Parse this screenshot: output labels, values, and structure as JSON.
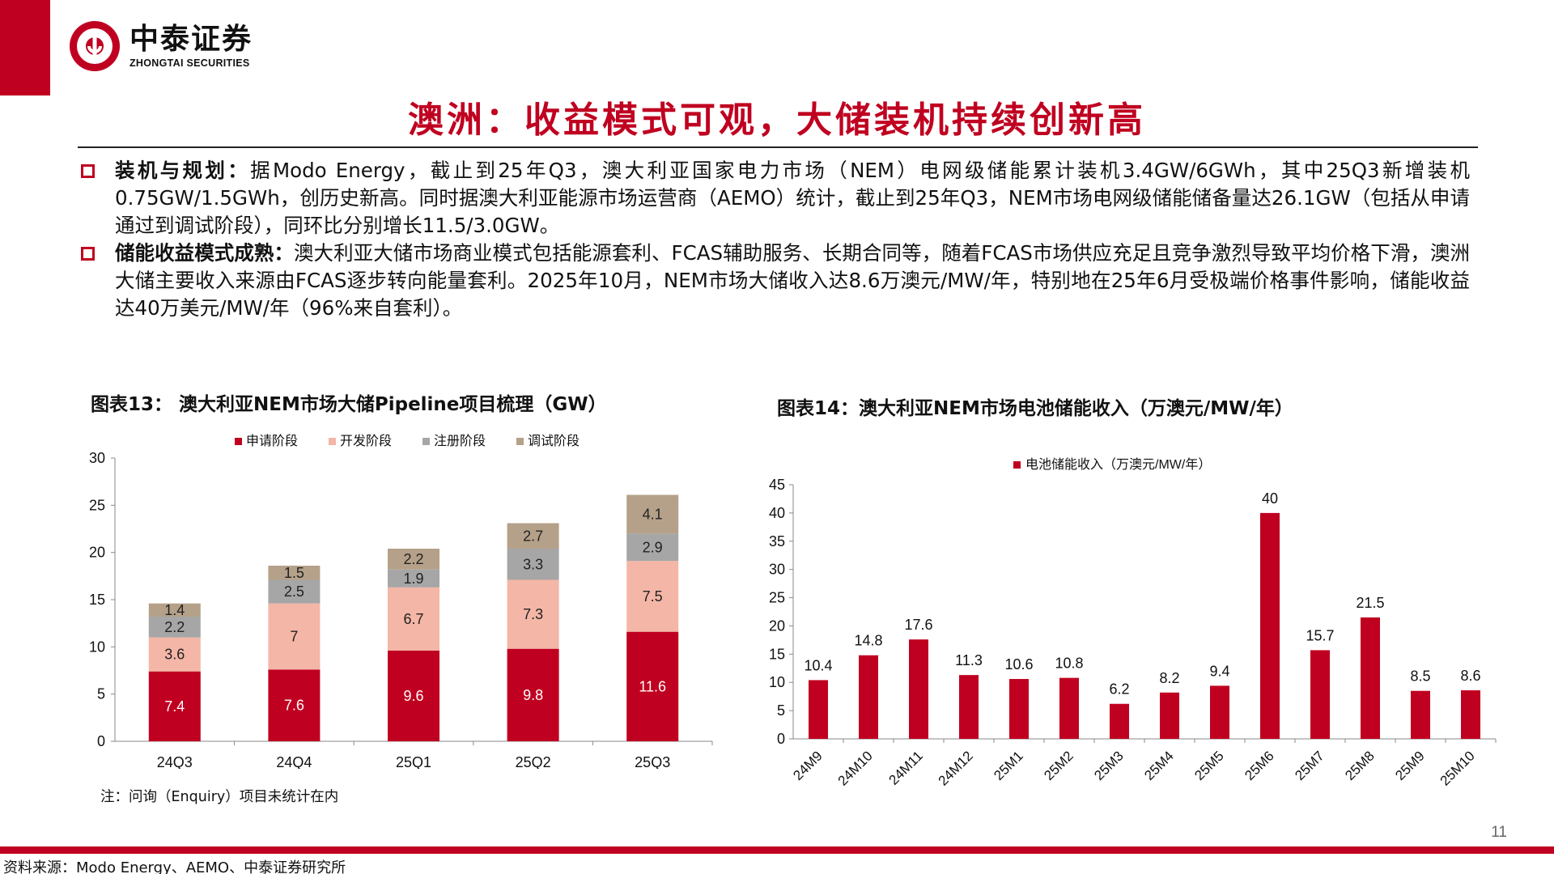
{
  "brand": {
    "name_cn": "中泰证券",
    "name_en": "ZHONGTAI SECURITIES",
    "color_primary": "#c00020"
  },
  "page": {
    "title": "澳洲：收益模式可观，大储装机持续创新高",
    "number": "11"
  },
  "bullets": [
    {
      "head": "装机与规划：",
      "text": "据Modo Energy，截止到25年Q3，澳大利亚国家电力市场（NEM）电网级储能累计装机3.4GW/6GWh，其中25Q3新增装机0.75GW/1.5GWh，创历史新高。同时据澳大利亚能源市场运营商（AEMO）统计，截止到25年Q3，NEM市场电网级储能储备量达26.1GW（包括从申请通过到调试阶段），同环比分别增长11.5/3.0GW。"
    },
    {
      "head": "储能收益模式成熟：",
      "text": "澳大利亚大储市场商业模式包括能源套利、FCAS辅助服务、长期合同等，随着FCAS市场供应充足且竞争激烈导致平均价格下滑，澳洲大储主要收入来源由FCAS逐步转向能量套利。2025年10月，NEM市场大储收入达8.6万澳元/MW/年，特别地在25年6月受极端价格事件影响，储能收益达40万美元/MW/年（96%来自套利）。"
    }
  ],
  "chart13_title": "图表13： 澳大利亚NEM市场大储Pipeline项目梳理（GW）",
  "chart14_title": "图表14：澳大利亚NEM市场电池储能收入（万澳元/MW/年）",
  "note": "注：问询（Enquiry）项目未统计在内",
  "source": "资料来源：Modo Energy、AEMO、中泰证券研究所",
  "chart_data": [
    {
      "type": "bar",
      "stacked": true,
      "title": "澳大利亚NEM市场大储Pipeline项目梳理（GW）",
      "categories": [
        "24Q3",
        "24Q4",
        "25Q1",
        "25Q2",
        "25Q3"
      ],
      "series": [
        {
          "name": "申请阶段",
          "color": "#c00020",
          "values": [
            7.4,
            7.6,
            9.6,
            9.8,
            11.6
          ]
        },
        {
          "name": "开发阶段",
          "color": "#f4b6a6",
          "values": [
            3.6,
            7,
            6.7,
            7.3,
            7.5
          ]
        },
        {
          "name": "注册阶段",
          "color": "#a6a6a6",
          "values": [
            2.2,
            2.5,
            1.9,
            3.3,
            2.9
          ]
        },
        {
          "name": "调试阶段",
          "color": "#b5a189",
          "values": [
            1.4,
            1.5,
            2.2,
            2.7,
            4.1
          ]
        }
      ],
      "yticks": [
        "0",
        "5",
        "10",
        "15",
        "20",
        "25",
        "30"
      ],
      "ylim": [
        0,
        30
      ],
      "legend": "top"
    },
    {
      "type": "bar",
      "title": "澳大利亚NEM市场电池储能收入（万澳元/MW/年）",
      "series_name": "电池储能收入（万澳元/MW/年）",
      "color": "#c00020",
      "categories": [
        "24M9",
        "24M10",
        "24M11",
        "24M12",
        "25M1",
        "25M2",
        "25M3",
        "25M4",
        "25M5",
        "25M6",
        "25M7",
        "25M8",
        "25M9",
        "25M10"
      ],
      "values": [
        10.4,
        14.8,
        17.6,
        11.3,
        10.6,
        10.8,
        6.2,
        8.2,
        9.4,
        40,
        15.7,
        21.5,
        8.5,
        8.6
      ],
      "labels": [
        "10.4",
        "14.8",
        "17.6",
        "11.3",
        "10.6",
        "10.8",
        "6.2",
        "8.2",
        "9.4",
        "40",
        "15.7",
        "21.5",
        "8.5",
        "8.6"
      ],
      "yticks": [
        "0",
        "5",
        "10",
        "15",
        "20",
        "25",
        "30",
        "35",
        "40",
        "45"
      ],
      "ylim": [
        0,
        45
      ],
      "legend": "top"
    }
  ]
}
